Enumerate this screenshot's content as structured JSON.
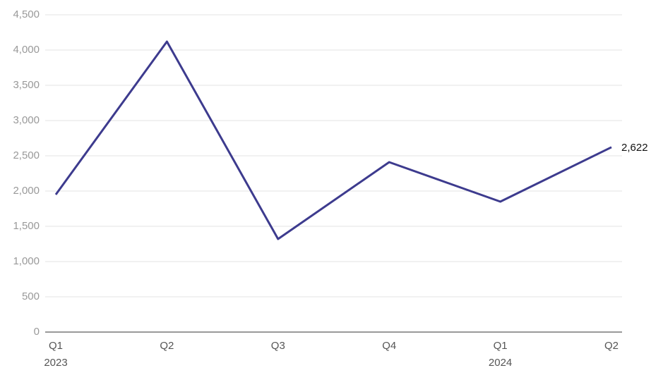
{
  "chart_data": {
    "type": "line",
    "categories": [
      "Q1",
      "Q2",
      "Q3",
      "Q4",
      "Q1",
      "Q2"
    ],
    "years": [
      "2023",
      null,
      null,
      null,
      "2024",
      null
    ],
    "series": [
      {
        "color": "#3d3b8e",
        "values": [
          1950,
          4120,
          1320,
          2410,
          1850,
          2622
        ],
        "value_labels": [
          null,
          null,
          null,
          null,
          null,
          "2,622"
        ]
      }
    ],
    "ylim": [
      0,
      4500
    ],
    "yticks": [
      0,
      500,
      {
        "value": 1000,
        "label": "1,000"
      },
      {
        "value": 1500,
        "label": "1,500"
      },
      {
        "value": 2000,
        "label": "2,000"
      },
      {
        "value": 2500,
        "label": "2,500"
      },
      {
        "value": 3000,
        "label": "3,000"
      },
      {
        "value": 3500,
        "label": "3,500"
      },
      {
        "value": 4000,
        "label": "4,000"
      },
      {
        "value": 4500,
        "label": "4,500"
      }
    ],
    "grid": true
  }
}
